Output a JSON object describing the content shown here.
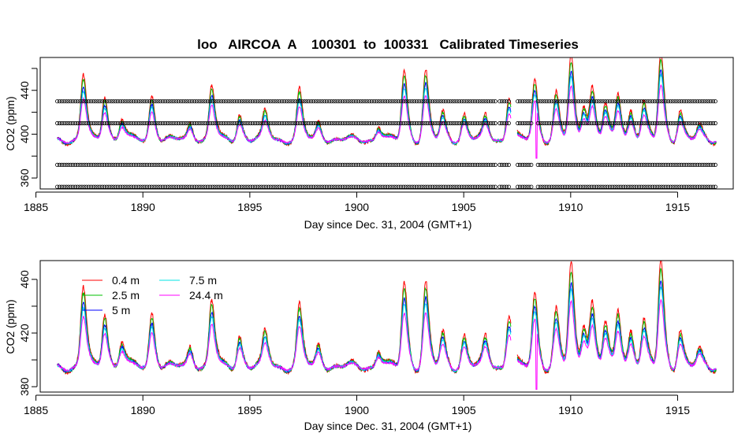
{
  "figure": {
    "title": "loo   AIRCOA  A    100301  to  100331   Calibrated Timeseries"
  },
  "colors": {
    "h0_4": "#ff0000",
    "h2_5": "#00c000",
    "h5": "#0000ff",
    "h7_5": "#00e5e5",
    "h24_4": "#ff00ff",
    "cal": "#000000"
  },
  "chart_data": [
    {
      "type": "line",
      "panel": "top",
      "title": "loo   AIRCOA  A    100301  to  100331   Calibrated Timeseries",
      "xlabel": "Day since Dec. 31, 2004 (GMT+1)",
      "ylabel": "CO2 (ppm)",
      "xlim": [
        1885.2,
        1917.6
      ],
      "ylim": [
        350,
        470
      ],
      "xticks": [
        "1885",
        "1890",
        "1895",
        "1900",
        "1905",
        "1910",
        "1915"
      ],
      "yticks": [
        "360",
        "400",
        "440"
      ],
      "yticks_unlabeled": [
        380,
        420,
        460
      ],
      "grid": false,
      "legend": "none",
      "calibration_levels": [
        352,
        372,
        410,
        430
      ],
      "calibration_x": [
        1886.0,
        1916.8
      ],
      "calibration_gaps": [
        [
          1906.5,
          1906.6
        ],
        [
          1907.2,
          1907.5
        ],
        [
          1908.2,
          1908.4
        ]
      ],
      "data_gap": [
        1907.2,
        1907.5
      ],
      "series_names_shared_with": "bottom"
    },
    {
      "type": "line",
      "panel": "bottom",
      "xlabel": "Day since Dec. 31, 2004 (GMT+1)",
      "ylabel": "CO2 (ppm)",
      "xlim": [
        1885.2,
        1917.6
      ],
      "ylim": [
        376,
        474
      ],
      "xticks": [
        "1885",
        "1890",
        "1895",
        "1900",
        "1905",
        "1910",
        "1915"
      ],
      "yticks": [
        "380",
        "420",
        "460"
      ],
      "yticks_unlabeled": [
        400,
        440
      ],
      "grid": false,
      "legend": "top-left",
      "data_gap": [
        1907.2,
        1907.5
      ],
      "series": [
        {
          "name": "0.4 m",
          "color": "#ff0000",
          "gain": 1.15,
          "noise": 1.6
        },
        {
          "name": "2.5 m",
          "color": "#00c000",
          "gain": 1.05,
          "noise": 1.3
        },
        {
          "name": "5 m",
          "color": "#0000ff",
          "gain": 0.92,
          "noise": 1.0
        },
        {
          "name": "7.5 m",
          "color": "#00e5e5",
          "gain": 0.85,
          "noise": 0.9
        },
        {
          "name": "24.4 m",
          "color": "#ff00ff",
          "gain": 0.72,
          "noise": 0.7
        }
      ],
      "baseline": 395,
      "approx_peaks": [
        {
          "x": 1887.2,
          "y": 452
        },
        {
          "x": 1888.2,
          "y": 436
        },
        {
          "x": 1889.0,
          "y": 414
        },
        {
          "x": 1890.4,
          "y": 435
        },
        {
          "x": 1892.2,
          "y": 410
        },
        {
          "x": 1893.2,
          "y": 443
        },
        {
          "x": 1894.5,
          "y": 418
        },
        {
          "x": 1895.7,
          "y": 420
        },
        {
          "x": 1897.3,
          "y": 438
        },
        {
          "x": 1898.2,
          "y": 411
        },
        {
          "x": 1901.0,
          "y": 408
        },
        {
          "x": 1902.2,
          "y": 456
        },
        {
          "x": 1903.2,
          "y": 455
        },
        {
          "x": 1904.0,
          "y": 418
        },
        {
          "x": 1905.0,
          "y": 418
        },
        {
          "x": 1906.0,
          "y": 416
        },
        {
          "x": 1907.1,
          "y": 434
        },
        {
          "x": 1908.3,
          "y": 448
        },
        {
          "x": 1909.3,
          "y": 436
        },
        {
          "x": 1910.0,
          "y": 467
        },
        {
          "x": 1910.6,
          "y": 428
        },
        {
          "x": 1911.0,
          "y": 440
        },
        {
          "x": 1911.6,
          "y": 425
        },
        {
          "x": 1912.2,
          "y": 436
        },
        {
          "x": 1912.8,
          "y": 422
        },
        {
          "x": 1913.4,
          "y": 428
        },
        {
          "x": 1914.2,
          "y": 471
        },
        {
          "x": 1915.1,
          "y": 422
        },
        {
          "x": 1916.0,
          "y": 406
        }
      ],
      "approx_dip": {
        "x": 1908.4,
        "y": 378
      }
    }
  ]
}
